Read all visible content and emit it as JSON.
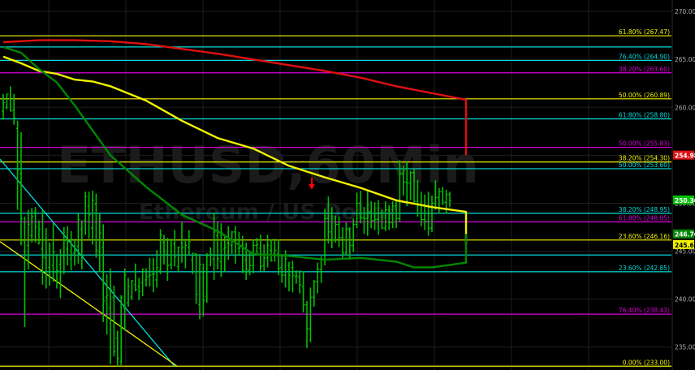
{
  "chart_data": {
    "type": "line",
    "watermark": {
      "symbol": "ETHUSD,60Min",
      "description": "Ethereum / US Dollar"
    },
    "ylim": [
      232.6,
      271.2
    ],
    "y_ticks": [
      235.0,
      240.0,
      245.0,
      250.0,
      255.0,
      260.0,
      265.0,
      270.0
    ],
    "y_tick_labels": [
      "235.00",
      "240.00",
      "245.00",
      "250.00",
      "255.00",
      "260.00",
      "265.00",
      "270.00"
    ],
    "price_tags": [
      {
        "value": 254.98,
        "label": "254.98",
        "color": "#e01010"
      },
      {
        "value": 250.3,
        "label": "250.30",
        "color": "#00c000"
      },
      {
        "value": 246.76,
        "label": "246.76",
        "color": "#008800"
      },
      {
        "value": 245.65,
        "label": "245.65",
        "color": "#f2f200"
      }
    ],
    "fib_levels": [
      {
        "pct": "61.80%",
        "value": 267.47,
        "label": "61.80% (267.47)",
        "color": "#f2f200"
      },
      {
        "pct": "76.40%",
        "value": 264.9,
        "label": "76.40% (264.90)",
        "color": "#00dddd"
      },
      {
        "pct": "38.20%",
        "value": 263.6,
        "label": "38.20% (263.60)",
        "color": "#dd00dd"
      },
      {
        "pct": "50.00%",
        "value": 260.89,
        "label": "50.00% (260.89)",
        "color": "#f2f200"
      },
      {
        "pct": "61.80%",
        "value": 258.8,
        "label": "61.80% (258.80)",
        "color": "#00dddd"
      },
      {
        "pct": "50.00%",
        "value": 255.83,
        "label": "50.00% (255.83)",
        "color": "#dd00dd"
      },
      {
        "pct": "38.20%",
        "value": 254.3,
        "label": "38.20% (254.30)",
        "color": "#f2f200"
      },
      {
        "pct": "50.00%",
        "value": 253.6,
        "label": "50.00% (253.60)",
        "color": "#00dddd"
      },
      {
        "pct": "38.20%",
        "value": 248.95,
        "label": "38.20% (248.95)",
        "color": "#00dddd"
      },
      {
        "pct": "61.80%",
        "value": 248.05,
        "label": "61.80% (248.05)",
        "color": "#dd00dd"
      },
      {
        "pct": "23.60%",
        "value": 246.16,
        "label": "23.60% (246.16)",
        "color": "#f2f200"
      },
      {
        "pct": "23.60%",
        "value": 242.85,
        "label": "23.60% (242.85)",
        "color": "#00dddd"
      },
      {
        "pct": "76.40%",
        "value": 238.43,
        "label": "76.40% (238.43)",
        "color": "#dd00dd"
      },
      {
        "pct": "0.00%",
        "value": 233.0,
        "label": "0.00% (233.00)",
        "color": "#f2f200"
      }
    ],
    "extra_levels": [
      {
        "value": 266.3,
        "color": "#00dddd"
      },
      {
        "value": 244.6,
        "color": "#00dddd"
      }
    ],
    "series": [
      {
        "key": "ma_red",
        "color": "#e01010",
        "x": [
          0,
          10,
          20,
          30,
          40,
          60,
          80,
          90,
          100,
          110,
          125,
          140,
          155,
          170,
          181
        ],
        "values": [
          266.8,
          267.0,
          267.0,
          266.9,
          266.6,
          265.6,
          264.4,
          263.8,
          263.1,
          262.2,
          260.8,
          259.2,
          257.4,
          255.9,
          255.0
        ]
      },
      {
        "key": "ma_yellow",
        "color": "#f2f200",
        "x": [
          0,
          5,
          10,
          15,
          20,
          25,
          30,
          40,
          50,
          60,
          70,
          80,
          90,
          100,
          110,
          120,
          130,
          140,
          150,
          160,
          165,
          170,
          175,
          181
        ],
        "values": [
          265.3,
          264.6,
          263.8,
          263.5,
          262.9,
          262.7,
          262.2,
          260.7,
          258.6,
          256.8,
          255.7,
          253.9,
          252.7,
          251.6,
          250.3,
          249.6,
          249.1,
          248.8,
          248.1,
          247.2,
          246.7,
          246.2,
          246.0,
          245.7
        ]
      },
      {
        "key": "ma_green",
        "color": "#008800",
        "x": [
          0,
          5,
          10,
          15,
          20,
          25,
          30,
          40,
          50,
          60,
          70,
          80,
          90,
          100,
          110,
          115,
          120,
          125,
          130,
          140,
          150,
          160,
          170,
          181
        ],
        "values": [
          266.3,
          265.7,
          264.0,
          262.6,
          260.2,
          257.6,
          255.0,
          251.7,
          248.8,
          247.1,
          244.7,
          244.5,
          244.1,
          244.3,
          243.9,
          243.3,
          243.3,
          243.8,
          244.2,
          245.0,
          245.1,
          245.3,
          245.8,
          246.8
        ]
      }
    ],
    "bars": [
      {
        "o": 259.6,
        "h": 261.4,
        "l": 258.7,
        "c": 260.5
      },
      {
        "o": 260.0,
        "h": 261.4,
        "l": 259.8,
        "c": 261.4
      },
      {
        "o": 260.9,
        "h": 262.2,
        "l": 259.6,
        "c": 259.6
      },
      {
        "o": 259.7,
        "h": 261.4,
        "l": 258.2,
        "c": 258.9
      },
      {
        "o": 257.8,
        "h": 258.6,
        "l": 249.3,
        "c": 253.5
      },
      {
        "o": 253.1,
        "h": 257.4,
        "l": 245.6,
        "c": 248.4
      },
      {
        "o": 246.1,
        "h": 248.6,
        "l": 237.1,
        "c": 245.0
      },
      {
        "o": 245.6,
        "h": 249.3,
        "l": 243.1,
        "c": 247.8
      },
      {
        "o": 246.6,
        "h": 249.5,
        "l": 245.9,
        "c": 248.6
      },
      {
        "o": 249.1,
        "h": 249.6,
        "l": 245.9,
        "c": 247.5
      },
      {
        "o": 245.8,
        "h": 248.2,
        "l": 245.7,
        "c": 247.3
      },
      {
        "o": 245.2,
        "h": 249.3,
        "l": 241.5,
        "c": 244.4
      },
      {
        "o": 244.3,
        "h": 247.4,
        "l": 241.1,
        "c": 246.2
      },
      {
        "o": 243.3,
        "h": 245.9,
        "l": 241.4,
        "c": 242.9
      },
      {
        "o": 243.5,
        "h": 247.9,
        "l": 241.8,
        "c": 244.9
      },
      {
        "o": 242.8,
        "h": 244.7,
        "l": 241.1,
        "c": 243.0
      },
      {
        "o": 243.6,
        "h": 245.2,
        "l": 240.1,
        "c": 242.8
      },
      {
        "o": 244.5,
        "h": 247.5,
        "l": 242.6,
        "c": 246.1
      },
      {
        "o": 245.2,
        "h": 247.6,
        "l": 243.5,
        "c": 246.0
      },
      {
        "o": 244.2,
        "h": 247.1,
        "l": 243.0,
        "c": 245.7
      },
      {
        "o": 244.8,
        "h": 246.3,
        "l": 243.5,
        "c": 245.0
      },
      {
        "o": 245.5,
        "h": 248.9,
        "l": 243.7,
        "c": 248.3
      },
      {
        "o": 247.3,
        "h": 248.2,
        "l": 243.1,
        "c": 244.5
      },
      {
        "o": 248.2,
        "h": 251.2,
        "l": 246.7,
        "c": 250.7
      },
      {
        "o": 249.7,
        "h": 251.2,
        "l": 246.3,
        "c": 248.8
      },
      {
        "o": 247.4,
        "h": 251.3,
        "l": 245.7,
        "c": 250.3
      },
      {
        "o": 249.9,
        "h": 251.0,
        "l": 244.3,
        "c": 245.1
      },
      {
        "o": 244.9,
        "h": 248.9,
        "l": 242.8,
        "c": 246.9
      },
      {
        "o": 245.4,
        "h": 247.8,
        "l": 237.6,
        "c": 239.8
      },
      {
        "o": 240.2,
        "h": 242.6,
        "l": 236.3,
        "c": 240.4
      },
      {
        "o": 239.1,
        "h": 243.2,
        "l": 233.2,
        "c": 241.0
      },
      {
        "o": 240.2,
        "h": 241.4,
        "l": 234.0,
        "c": 234.5
      },
      {
        "o": 235.9,
        "h": 236.7,
        "l": 233.0,
        "c": 233.8
      },
      {
        "o": 233.5,
        "h": 240.4,
        "l": 233.1,
        "c": 240.2
      },
      {
        "o": 239.1,
        "h": 243.2,
        "l": 236.7,
        "c": 242.5
      },
      {
        "o": 239.6,
        "h": 242.2,
        "l": 239.2,
        "c": 241.3
      },
      {
        "o": 240.2,
        "h": 242.0,
        "l": 239.9,
        "c": 241.9
      },
      {
        "o": 241.5,
        "h": 243.7,
        "l": 240.8,
        "c": 241.0
      },
      {
        "o": 241.3,
        "h": 242.2,
        "l": 239.9,
        "c": 240.8
      },
      {
        "o": 241.7,
        "h": 243.2,
        "l": 240.3,
        "c": 243.1
      },
      {
        "o": 242.0,
        "h": 243.2,
        "l": 241.3,
        "c": 242.3
      },
      {
        "o": 242.4,
        "h": 244.3,
        "l": 241.3,
        "c": 242.5
      },
      {
        "o": 242.6,
        "h": 244.3,
        "l": 240.7,
        "c": 242.6
      },
      {
        "o": 242.0,
        "h": 245.1,
        "l": 241.2,
        "c": 243.3
      },
      {
        "o": 243.0,
        "h": 247.3,
        "l": 242.6,
        "c": 246.7
      },
      {
        "o": 245.9,
        "h": 246.7,
        "l": 243.6,
        "c": 245.0
      },
      {
        "o": 244.7,
        "h": 246.4,
        "l": 241.9,
        "c": 243.5
      },
      {
        "o": 243.6,
        "h": 246.3,
        "l": 243.1,
        "c": 244.6
      },
      {
        "o": 245.8,
        "h": 247.2,
        "l": 243.4,
        "c": 244.4
      },
      {
        "o": 243.4,
        "h": 245.5,
        "l": 242.8,
        "c": 245.4
      },
      {
        "o": 245.8,
        "h": 248.1,
        "l": 243.8,
        "c": 245.4
      },
      {
        "o": 244.6,
        "h": 246.3,
        "l": 243.2,
        "c": 245.6
      },
      {
        "o": 245.4,
        "h": 247.2,
        "l": 244.6,
        "c": 246.0
      },
      {
        "o": 244.1,
        "h": 244.8,
        "l": 242.6,
        "c": 244.8
      },
      {
        "o": 244.7,
        "h": 244.8,
        "l": 239.5,
        "c": 240.5
      },
      {
        "o": 239.4,
        "h": 244.7,
        "l": 237.9,
        "c": 243.6
      },
      {
        "o": 242.8,
        "h": 243.7,
        "l": 238.2,
        "c": 239.8
      },
      {
        "o": 240.3,
        "h": 244.8,
        "l": 239.6,
        "c": 244.5
      },
      {
        "o": 244.6,
        "h": 245.4,
        "l": 243.4,
        "c": 244.7
      },
      {
        "o": 244.2,
        "h": 249.0,
        "l": 242.0,
        "c": 247.0
      },
      {
        "o": 246.6,
        "h": 248.1,
        "l": 243.1,
        "c": 244.2
      },
      {
        "o": 243.9,
        "h": 247.9,
        "l": 242.3,
        "c": 246.9
      },
      {
        "o": 245.2,
        "h": 246.7,
        "l": 242.8,
        "c": 245.4
      },
      {
        "o": 245.8,
        "h": 247.6,
        "l": 244.1,
        "c": 245.8
      },
      {
        "o": 245.6,
        "h": 247.1,
        "l": 244.7,
        "c": 247.0
      },
      {
        "o": 247.0,
        "h": 247.6,
        "l": 243.7,
        "c": 246.2
      },
      {
        "o": 245.3,
        "h": 247.0,
        "l": 244.5,
        "c": 245.3
      },
      {
        "o": 245.6,
        "h": 246.6,
        "l": 242.7,
        "c": 243.0
      },
      {
        "o": 244.1,
        "h": 245.9,
        "l": 242.0,
        "c": 243.1
      },
      {
        "o": 243.0,
        "h": 245.0,
        "l": 242.5,
        "c": 243.5
      },
      {
        "o": 243.5,
        "h": 246.2,
        "l": 242.7,
        "c": 245.6
      },
      {
        "o": 245.6,
        "h": 246.4,
        "l": 244.7,
        "c": 245.7
      },
      {
        "o": 245.3,
        "h": 246.7,
        "l": 242.9,
        "c": 243.4
      },
      {
        "o": 243.5,
        "h": 245.7,
        "l": 242.9,
        "c": 244.3
      },
      {
        "o": 244.3,
        "h": 246.7,
        "l": 243.3,
        "c": 245.6
      },
      {
        "o": 245.1,
        "h": 246.2,
        "l": 243.9,
        "c": 244.0
      },
      {
        "o": 244.8,
        "h": 246.3,
        "l": 243.9,
        "c": 245.1
      },
      {
        "o": 244.7,
        "h": 246.2,
        "l": 242.5,
        "c": 243.2
      },
      {
        "o": 243.3,
        "h": 244.7,
        "l": 241.7,
        "c": 242.5
      },
      {
        "o": 242.5,
        "h": 245.1,
        "l": 241.2,
        "c": 244.2
      },
      {
        "o": 243.5,
        "h": 243.9,
        "l": 240.8,
        "c": 242.5
      },
      {
        "o": 243.3,
        "h": 244.0,
        "l": 240.7,
        "c": 242.5
      },
      {
        "o": 242.4,
        "h": 243.0,
        "l": 241.6,
        "c": 242.4
      },
      {
        "o": 242.3,
        "h": 243.0,
        "l": 240.6,
        "c": 241.5
      },
      {
        "o": 241.3,
        "h": 242.9,
        "l": 238.6,
        "c": 239.4
      },
      {
        "o": 239.4,
        "h": 239.8,
        "l": 234.9,
        "c": 236.9
      },
      {
        "o": 236.9,
        "h": 241.2,
        "l": 235.5,
        "c": 240.2
      },
      {
        "o": 240.2,
        "h": 242.0,
        "l": 239.2,
        "c": 241.8
      },
      {
        "o": 241.8,
        "h": 243.8,
        "l": 240.6,
        "c": 243.1
      },
      {
        "o": 243.1,
        "h": 244.5,
        "l": 241.7,
        "c": 244.1
      },
      {
        "o": 244.1,
        "h": 249.4,
        "l": 243.5,
        "c": 248.4
      },
      {
        "o": 248.4,
        "h": 250.7,
        "l": 245.8,
        "c": 247.0
      },
      {
        "o": 247.0,
        "h": 249.6,
        "l": 245.3,
        "c": 246.2
      },
      {
        "o": 246.2,
        "h": 248.7,
        "l": 245.9,
        "c": 247.8
      },
      {
        "o": 247.8,
        "h": 248.6,
        "l": 245.4,
        "c": 246.4
      },
      {
        "o": 246.4,
        "h": 247.5,
        "l": 244.2,
        "c": 244.8
      },
      {
        "o": 244.8,
        "h": 248.0,
        "l": 244.5,
        "c": 247.3
      },
      {
        "o": 247.3,
        "h": 247.5,
        "l": 244.1,
        "c": 245.6
      },
      {
        "o": 245.6,
        "h": 248.4,
        "l": 244.9,
        "c": 247.8
      },
      {
        "o": 247.8,
        "h": 251.1,
        "l": 247.4,
        "c": 250.0
      },
      {
        "o": 250.0,
        "h": 251.3,
        "l": 247.9,
        "c": 248.5
      },
      {
        "o": 248.5,
        "h": 249.6,
        "l": 246.8,
        "c": 248.4
      },
      {
        "o": 248.4,
        "h": 251.3,
        "l": 246.6,
        "c": 249.1
      },
      {
        "o": 249.1,
        "h": 250.2,
        "l": 247.4,
        "c": 248.2
      },
      {
        "o": 248.2,
        "h": 250.1,
        "l": 247.2,
        "c": 248.3
      },
      {
        "o": 248.3,
        "h": 250.3,
        "l": 246.7,
        "c": 248.9
      },
      {
        "o": 248.9,
        "h": 249.3,
        "l": 247.3,
        "c": 247.4
      },
      {
        "o": 247.4,
        "h": 250.2,
        "l": 247.1,
        "c": 249.3
      },
      {
        "o": 249.3,
        "h": 249.8,
        "l": 247.2,
        "c": 248.0
      },
      {
        "o": 248.0,
        "h": 250.2,
        "l": 247.4,
        "c": 249.7
      },
      {
        "o": 249.7,
        "h": 250.4,
        "l": 247.4,
        "c": 248.4
      },
      {
        "o": 248.4,
        "h": 254.5,
        "l": 248.1,
        "c": 253.1
      },
      {
        "o": 253.1,
        "h": 253.9,
        "l": 250.8,
        "c": 252.2
      },
      {
        "o": 252.2,
        "h": 254.3,
        "l": 249.7,
        "c": 252.1
      },
      {
        "o": 252.1,
        "h": 253.4,
        "l": 250.3,
        "c": 253.2
      },
      {
        "o": 253.2,
        "h": 253.6,
        "l": 249.9,
        "c": 250.2
      },
      {
        "o": 250.2,
        "h": 252.4,
        "l": 248.6,
        "c": 249.8
      },
      {
        "o": 249.8,
        "h": 251.2,
        "l": 247.6,
        "c": 248.3
      },
      {
        "o": 248.3,
        "h": 250.9,
        "l": 247.2,
        "c": 248.1
      },
      {
        "o": 248.1,
        "h": 251.2,
        "l": 246.6,
        "c": 247.4
      },
      {
        "o": 247.4,
        "h": 250.8,
        "l": 247.0,
        "c": 250.0
      },
      {
        "o": 250.0,
        "h": 252.4,
        "l": 249.3,
        "c": 250.6
      },
      {
        "o": 250.6,
        "h": 251.6,
        "l": 248.9,
        "c": 251.2
      },
      {
        "o": 251.2,
        "h": 251.7,
        "l": 249.8,
        "c": 250.1
      },
      {
        "o": 250.1,
        "h": 251.4,
        "l": 248.9,
        "c": 250.9
      },
      {
        "o": 250.9,
        "h": 251.2,
        "l": 249.6,
        "c": 250.3
      }
    ],
    "diagonals": [
      {
        "color": "#00dddd",
        "x1": 0,
        "y1": 254.6,
        "x2": 215,
        "y2": 233.0
      },
      {
        "color": "#f2f200",
        "x1": 0,
        "y1": 246.0,
        "x2": 218,
        "y2": 233.0
      }
    ],
    "arrow": {
      "color": "#ff0000",
      "value": 251.5
    },
    "colors": {
      "background": "#000000",
      "grid": "#1e1e1e",
      "axis_text": "#b0b0b0",
      "up_bar": "#00c000"
    }
  }
}
